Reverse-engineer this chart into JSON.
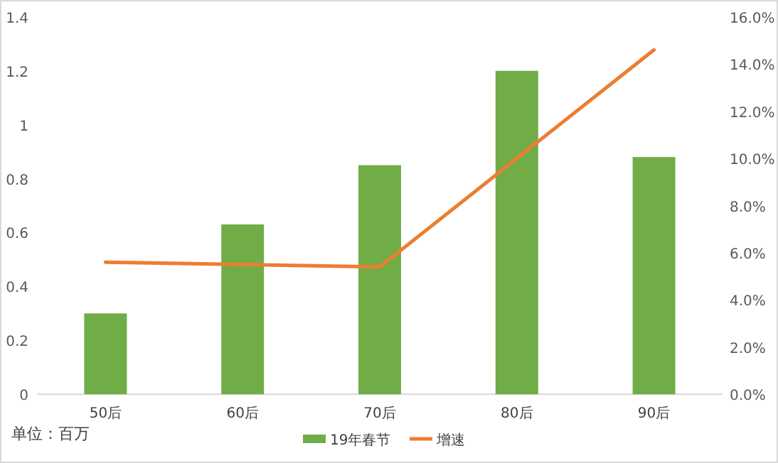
{
  "chart_data": {
    "type": "bar",
    "categories": [
      "50后",
      "60后",
      "70后",
      "80后",
      "90后"
    ],
    "series": [
      {
        "name": "19年春节",
        "color": "#70ad47",
        "values": [
          0.3,
          0.63,
          0.85,
          1.2,
          0.88
        ]
      },
      {
        "name": "增速",
        "type": "line",
        "axis": "y2",
        "color": "#ed7d31",
        "values": [
          5.6,
          5.5,
          5.4,
          10.0,
          14.6
        ]
      }
    ],
    "ylim": [
      0,
      1.4
    ],
    "yticks": [
      0,
      0.2,
      0.4,
      0.6,
      0.8,
      1,
      1.2,
      1.4
    ],
    "y2lim": [
      0,
      16
    ],
    "y2ticks": [
      {
        "value": 0,
        "label": "0.0%"
      },
      {
        "value": 2,
        "label": "2.0%"
      },
      {
        "value": 4,
        "label": "4.0%"
      },
      {
        "value": 6,
        "label": "6.0%"
      },
      {
        "value": 8,
        "label": "8.0%"
      },
      {
        "value": 10,
        "label": "10.0%"
      },
      {
        "value": 12,
        "label": "12.0%"
      },
      {
        "value": 14,
        "label": "14.0%"
      },
      {
        "value": 16,
        "label": "16.0%"
      }
    ],
    "legend": "bottom",
    "annotations": [
      "单位：百万"
    ]
  }
}
